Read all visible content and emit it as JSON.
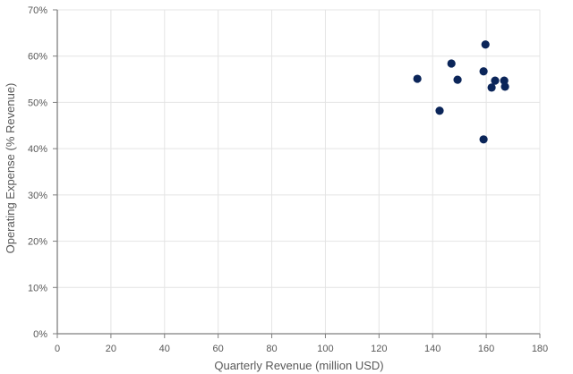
{
  "chart_data": {
    "type": "scatter",
    "title": "",
    "xlabel": "Quarterly Revenue (million USD)",
    "ylabel": "Operating Expense (% Revenue)",
    "xlim": [
      0,
      180
    ],
    "ylim": [
      0,
      70
    ],
    "x_ticks": [
      0,
      20,
      40,
      60,
      80,
      100,
      120,
      140,
      160,
      180
    ],
    "y_ticks": [
      "0%",
      "10%",
      "20%",
      "30%",
      "40%",
      "50%",
      "60%",
      "70%"
    ],
    "grid": true,
    "legend": null,
    "marker_color": "#0b2559",
    "points": [
      {
        "x": 134.3,
        "y": 55.1
      },
      {
        "x": 147.0,
        "y": 58.4
      },
      {
        "x": 149.3,
        "y": 54.9
      },
      {
        "x": 159.7,
        "y": 62.5
      },
      {
        "x": 159.0,
        "y": 56.7
      },
      {
        "x": 163.3,
        "y": 54.7
      },
      {
        "x": 166.7,
        "y": 54.7
      },
      {
        "x": 162.0,
        "y": 53.2
      },
      {
        "x": 167.0,
        "y": 53.4
      },
      {
        "x": 142.6,
        "y": 48.2
      },
      {
        "x": 159.0,
        "y": 42.0
      }
    ]
  }
}
